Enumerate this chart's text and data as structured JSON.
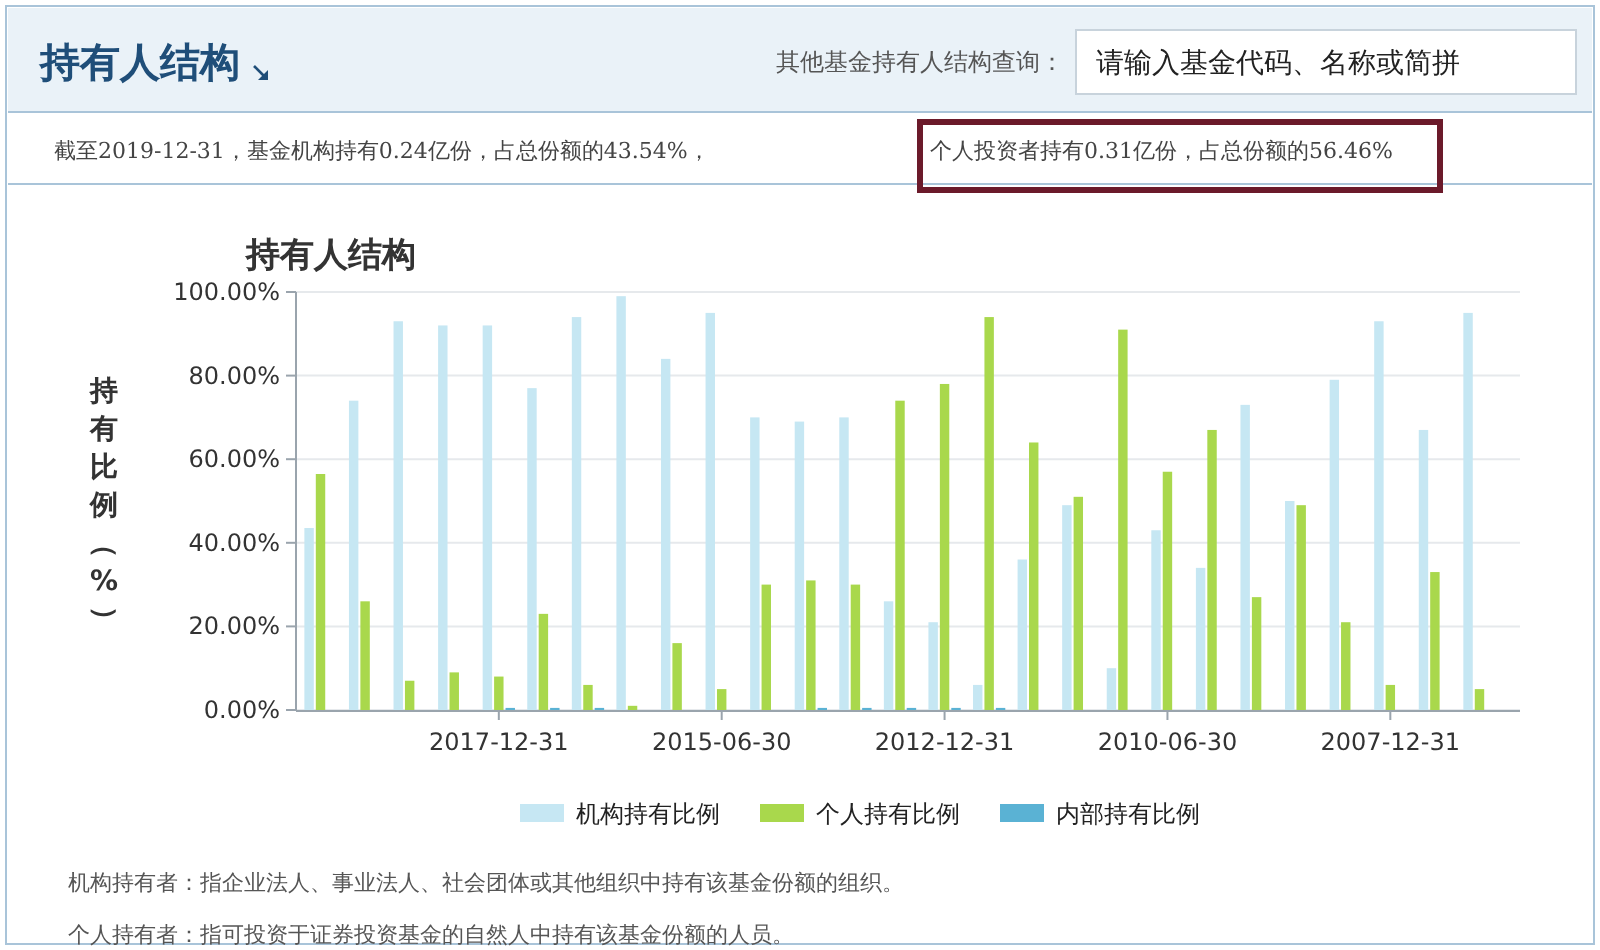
{
  "chart_data": {
    "type": "bar",
    "title": "持有人结构",
    "ylabel": "持有比例（%）",
    "categories": [
      null,
      null,
      null,
      null,
      "2017-12-31",
      null,
      null,
      null,
      null,
      "2015-06-30",
      null,
      null,
      null,
      null,
      "2012-12-31",
      null,
      null,
      null,
      null,
      "2010-06-30",
      null,
      null,
      null,
      null,
      "2007-12-31",
      null,
      null
    ],
    "series": [
      {
        "name": "机构持有比例",
        "color": "#c6e7f3",
        "values": [
          43.54,
          74,
          93,
          92,
          92,
          77,
          94,
          99,
          84,
          95,
          70,
          69,
          70,
          26,
          21,
          6,
          36,
          49,
          10,
          43,
          34,
          73,
          50,
          79,
          93,
          67,
          95
        ]
      },
      {
        "name": "个人持有比例",
        "color": "#a9d84c",
        "values": [
          56.46,
          26,
          7,
          9,
          8,
          23,
          6,
          1,
          16,
          5,
          30,
          31,
          30,
          74,
          78,
          94,
          64,
          51,
          91,
          57,
          67,
          27,
          49,
          21,
          6,
          33,
          5
        ]
      },
      {
        "name": "内部持有比例",
        "color": "#5ab2d4",
        "values": [
          0,
          0,
          0,
          0,
          0.5,
          0.5,
          0.5,
          0,
          0,
          0,
          0,
          0.5,
          0.5,
          0.5,
          0.5,
          0.5,
          0,
          0,
          0,
          0,
          0,
          0,
          0,
          0,
          0,
          0,
          0
        ]
      }
    ],
    "ylim": [
      0,
      100
    ],
    "yticks": [
      {
        "value": 0,
        "label": "0.00%"
      },
      {
        "value": 20,
        "label": "20.00%"
      },
      {
        "value": 40,
        "label": "40.00%"
      },
      {
        "value": 60,
        "label": "60.00%"
      },
      {
        "value": 80,
        "label": "80.00%"
      },
      {
        "value": 100,
        "label": "100.00%"
      }
    ],
    "grid": "y",
    "legend": "bottom",
    "annotations": [
      "持有人结构",
      "其他基金持有人结构查询：",
      "请输入基金代码、名称或简拼",
      "截至2019-12-31，基金机构持有0.24亿份，占总份额的43.54%，",
      "个人投资者持有0.31亿份，占总份额的56.46%",
      "机构持有者：指企业法人、事业法人、社会团体或其他组织中持有该基金份额的组织。",
      "个人持有者：指可投资于证券投资基金的自然人中持有该基金份额的人员。"
    ]
  }
}
